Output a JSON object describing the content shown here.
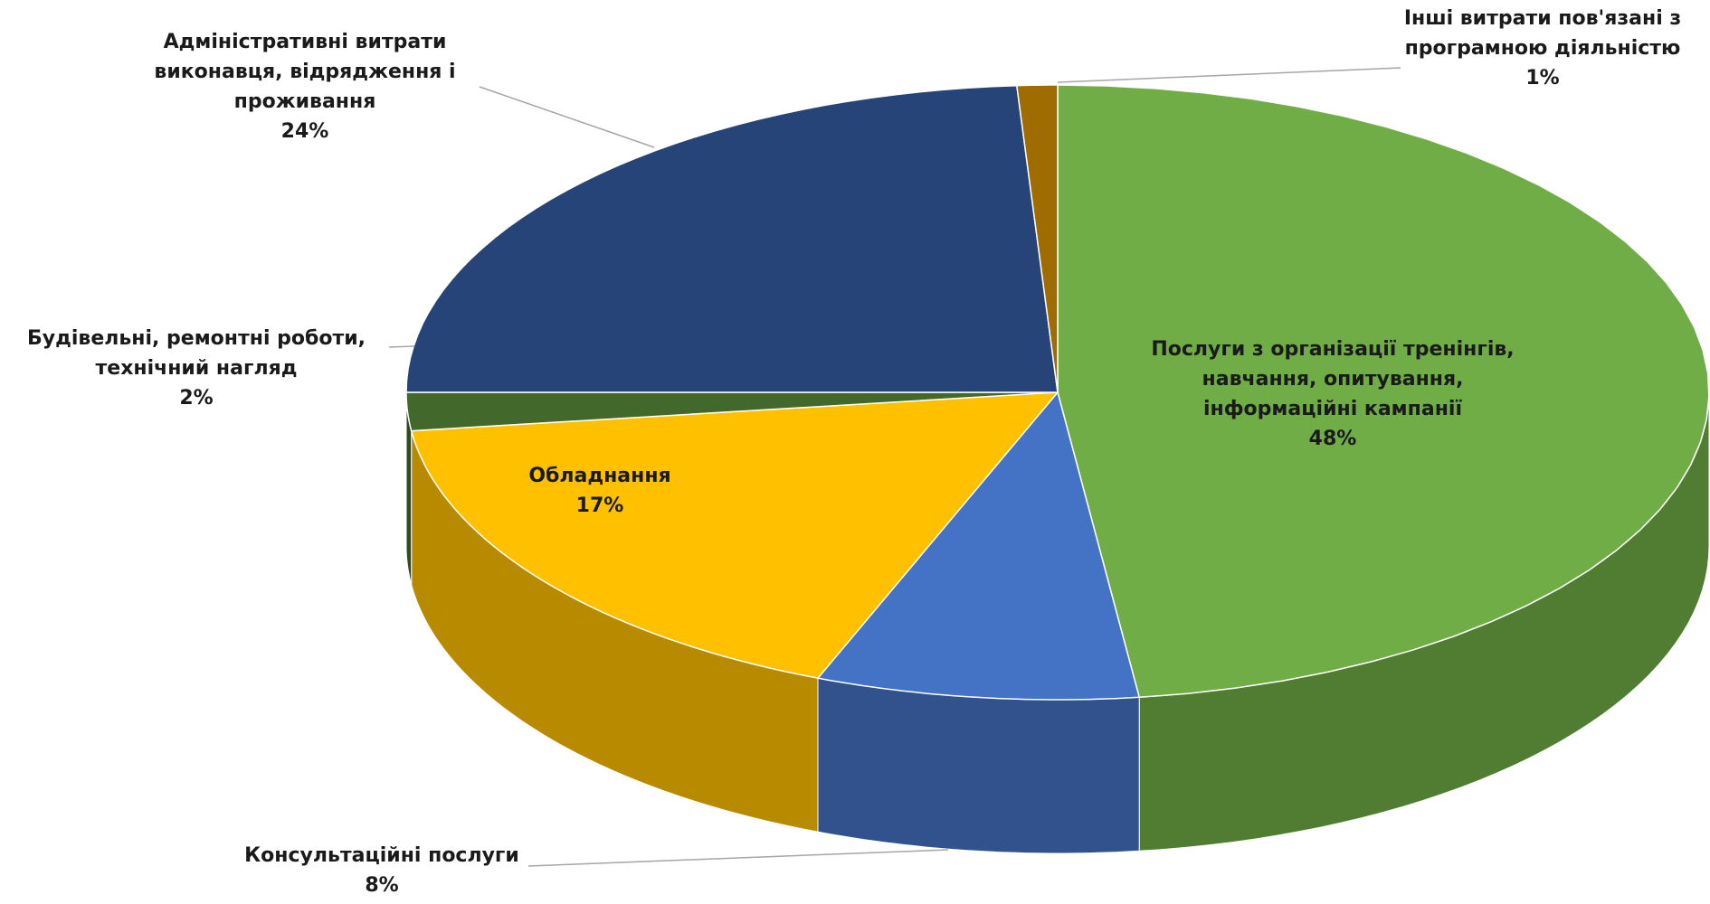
{
  "chart_data": {
    "type": "pie",
    "categories": [
      "Послуги з організації тренінгів, навчання, опитування, інформаційні кампанії",
      "Консультаційні послуги",
      "Обладнання",
      "Будівельні, ремонтні роботи, технічний нагляд",
      "Адміністративні витрати виконавця, відрядження і проживання",
      "Інші витрати пов'язані з програмною діяльністю"
    ],
    "values": [
      48,
      8,
      17,
      2,
      24,
      1
    ],
    "value_labels": [
      "48%",
      "8%",
      "17%",
      "2%",
      "24%",
      "1%"
    ],
    "colors": [
      "#70ad47",
      "#4472c4",
      "#ffc000",
      "#43682b",
      "#264478",
      "#9e6c00"
    ]
  }
}
